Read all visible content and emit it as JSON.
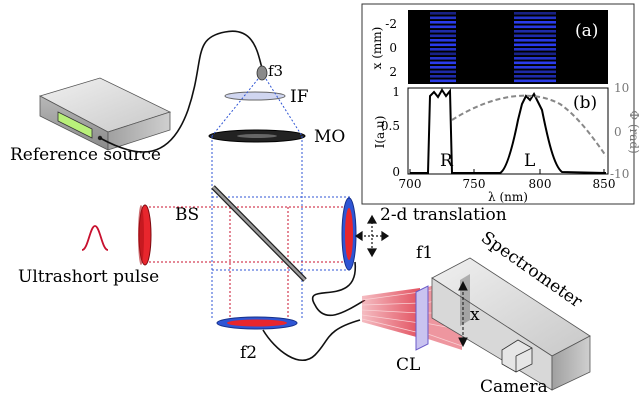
{
  "labels": {
    "reference_source": "Reference source",
    "ultrashort_pulse": "Ultrashort pulse",
    "bs": "BS",
    "mo": "MO",
    "if": "IF",
    "f1": "f1",
    "f2": "f2",
    "f3": "f3",
    "translation": "2-d translation",
    "spectrometer": "Spectrometer",
    "camera": "Camera",
    "cl": "CL",
    "x": "x"
  },
  "inset": {
    "panel_a_tag": "(a)",
    "panel_b_tag": "(b)",
    "a_ylabel": "x (mm)",
    "a_yticks": [
      "-2",
      "0",
      "2"
    ],
    "b_ylabel_left": "I(a.u)",
    "b_yticks_left": [
      "1",
      "0.5",
      "0"
    ],
    "b_ylabel_right": "Φ (rad)",
    "b_yticks_right": [
      "10",
      "0",
      "-10"
    ],
    "xlabel": "λ (nm)",
    "xticks": [
      "700",
      "750",
      "800",
      "850"
    ],
    "peak_labels": [
      "R",
      "L"
    ]
  },
  "colors": {
    "beam": "#c8102e",
    "optic_red": "#e8262d",
    "optic_blue": "#2f55d4",
    "fringe": "#2b3df0",
    "phase": "#888888"
  }
}
